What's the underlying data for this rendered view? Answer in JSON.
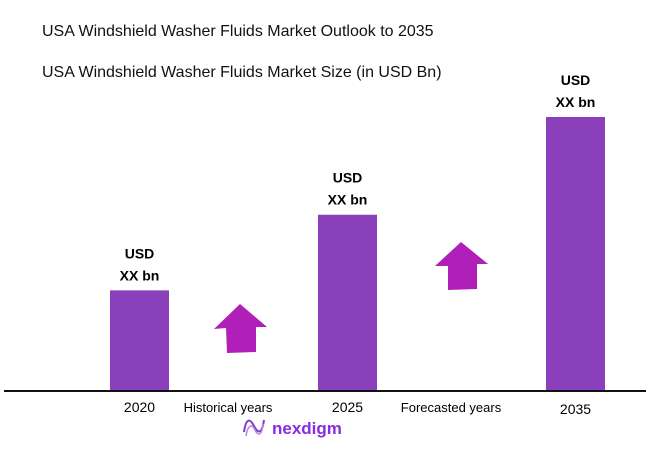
{
  "title": "USA Windshield Washer Fluids Market Outlook to 2035",
  "chart_data": {
    "type": "bar",
    "title": "USA Windshield Washer Fluids Market Size (in USD Bn)",
    "categories": [
      "2020",
      "2025",
      "2035"
    ],
    "values_relative_pct_of_max": [
      36.5,
      64.2,
      100
    ],
    "data_labels": [
      [
        "USD",
        "XX bn"
      ],
      [
        "USD",
        "XX bn"
      ],
      [
        "USD",
        "XX bn"
      ]
    ],
    "period_labels": [
      "Historical years",
      "Forecasted years"
    ],
    "bar_color": "#8a40bb",
    "arrow_color": "#b020b8",
    "grid": false
  },
  "logo": {
    "text": "nexdigm",
    "color": "#8a2be2"
  }
}
